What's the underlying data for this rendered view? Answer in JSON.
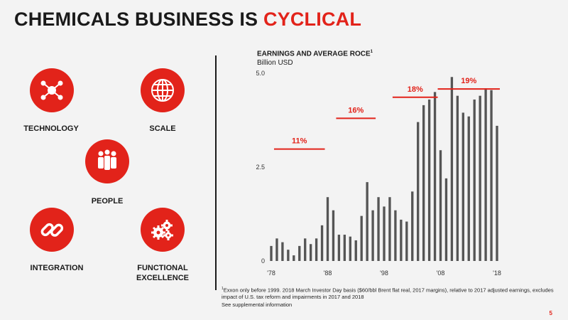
{
  "slide": {
    "title_prefix": "CHEMICALS BUSINESS IS ",
    "title_accent": "CYCLICAL",
    "page_number": "5",
    "accent_color": "#e2231a"
  },
  "icons": {
    "technology": {
      "label": "TECHNOLOGY",
      "icon": "network-nodes-icon"
    },
    "scale": {
      "label": "SCALE",
      "icon": "globe-icon"
    },
    "people": {
      "label": "PEOPLE",
      "icon": "people-group-icon"
    },
    "integration": {
      "label": "INTEGRATION",
      "icon": "chain-link-icon"
    },
    "functional_excellence": {
      "label_line1": "FUNCTIONAL",
      "label_line2": "EXCELLENCE",
      "icon": "gears-icon"
    }
  },
  "chart_heading": {
    "title": "EARNINGS AND AVERAGE ROCE",
    "title_sup": "1",
    "subtitle": "Billion USD"
  },
  "footnote": {
    "marker": "1",
    "text": "Exxon only before 1999. 2018 March Investor Day basis ($60/bbl Brent flat real, 2017 margins), relative to 2017 adjusted earnings, excludes impact of U.S. tax reform and impairments in 2017 and 2018",
    "supplemental": "See supplemental information"
  },
  "chart_data": {
    "type": "bar",
    "title": "EARNINGS AND AVERAGE ROCE",
    "ylabel": "Billion USD",
    "ylim": [
      0,
      5.0
    ],
    "yticks": [
      0,
      2.5,
      5.0
    ],
    "ytick_labels": [
      "0",
      "2.5",
      "5.0"
    ],
    "xtick_labels": [
      {
        "year": 1978,
        "label": "'78"
      },
      {
        "year": 1988,
        "label": "'88"
      },
      {
        "year": 1998,
        "label": "'98"
      },
      {
        "year": 2008,
        "label": "'08"
      },
      {
        "year": 2018,
        "label": "'18"
      }
    ],
    "bar_color": "#555555",
    "years": [
      1978,
      1979,
      1980,
      1981,
      1982,
      1983,
      1984,
      1985,
      1986,
      1987,
      1988,
      1989,
      1990,
      1991,
      1992,
      1993,
      1994,
      1995,
      1996,
      1997,
      1998,
      1999,
      2000,
      2001,
      2002,
      2003,
      2004,
      2005,
      2006,
      2007,
      2008,
      2009,
      2010,
      2011,
      2012,
      2013,
      2014,
      2015,
      2016,
      2017,
      2018
    ],
    "values": [
      0.4,
      0.6,
      0.5,
      0.3,
      0.15,
      0.4,
      0.6,
      0.45,
      0.6,
      0.95,
      1.7,
      1.35,
      0.7,
      0.7,
      0.65,
      0.55,
      1.2,
      2.1,
      1.35,
      1.7,
      1.45,
      1.7,
      1.35,
      1.1,
      1.05,
      1.85,
      3.7,
      4.15,
      4.3,
      4.5,
      2.95,
      2.2,
      4.9,
      4.4,
      3.95,
      3.85,
      4.3,
      4.4,
      4.6,
      4.55,
      3.6
    ],
    "roce_segments": [
      {
        "label": "11%",
        "from": 1979,
        "to": 1987,
        "value": 2.98
      },
      {
        "label": "16%",
        "from": 1990,
        "to": 1996,
        "value": 3.8
      },
      {
        "label": "18%",
        "from": 2000,
        "to": 2007,
        "value": 4.36
      },
      {
        "label": "19%",
        "from": 2008,
        "to": 2018,
        "value": 4.58
      }
    ],
    "roce_color": "#e2231a"
  }
}
